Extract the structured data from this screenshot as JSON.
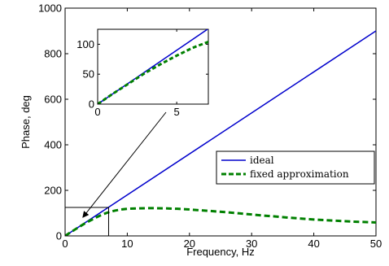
{
  "chart_data": {
    "type": "line",
    "title": "",
    "xlabel": "Frequency, Hz",
    "ylabel": "Phase, deg",
    "xlim": [
      0,
      50
    ],
    "ylim": [
      0,
      1000
    ],
    "xticks": [
      0,
      10,
      20,
      30,
      40,
      50
    ],
    "yticks": [
      0,
      200,
      400,
      600,
      800,
      1000
    ],
    "grid": false,
    "legend": {
      "position": "center-right"
    },
    "series": [
      {
        "name": "ideal",
        "color": "#0000cc",
        "style": "solid",
        "x": [
          0,
          50
        ],
        "y": [
          0,
          900
        ]
      },
      {
        "name": "fixed approximation",
        "color": "#008000",
        "style": "dashed",
        "x": [
          0,
          1,
          2,
          3,
          4,
          5,
          6,
          7,
          8,
          9,
          10,
          12,
          14,
          16,
          18,
          20,
          22,
          24,
          26,
          28,
          30,
          32,
          34,
          36,
          38,
          40,
          42,
          44,
          46,
          48,
          50
        ],
        "y": [
          0,
          18,
          35,
          52,
          67,
          81,
          94,
          104,
          111,
          116,
          119,
          121,
          122,
          121,
          119,
          116,
          112,
          108,
          104,
          99,
          94,
          89,
          85,
          80,
          76,
          72,
          69,
          66,
          63,
          61,
          59
        ]
      }
    ],
    "inset": {
      "xlim": [
        0,
        7
      ],
      "ylim": [
        0,
        125
      ],
      "xticks": [
        0,
        5
      ],
      "yticks": [
        0,
        50,
        100
      ],
      "zoom_box": {
        "xlim": [
          0,
          7
        ],
        "ylim": [
          0,
          125
        ]
      }
    }
  }
}
